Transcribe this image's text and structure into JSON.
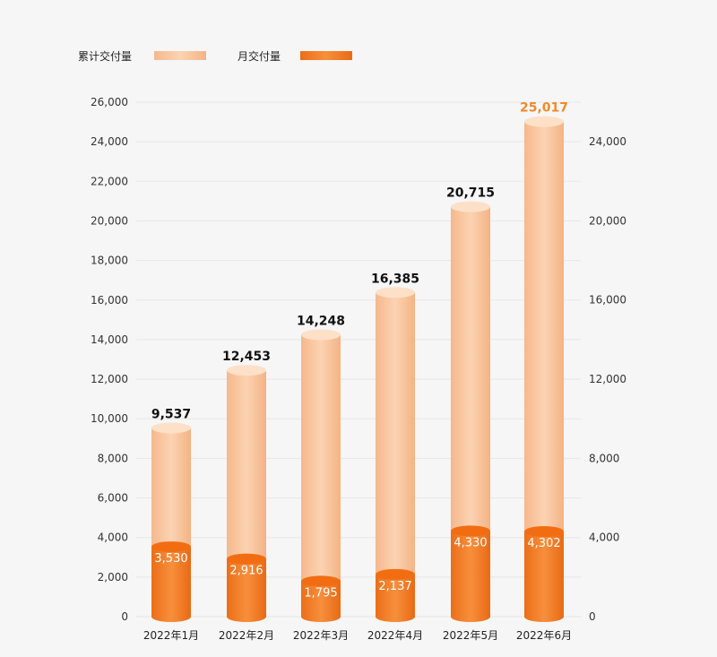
{
  "chart_data": {
    "type": "bar",
    "categories": [
      "2022年1月",
      "2022年2月",
      "2022年3月",
      "2022年4月",
      "2022年5月",
      "2022年6月"
    ],
    "series": [
      {
        "name": "累计交付量",
        "values": [
          9537,
          12453,
          14248,
          16385,
          20715,
          25017
        ],
        "labels": [
          "9,537",
          "12,453",
          "14,248",
          "16,385",
          "20,715",
          "25,017"
        ],
        "color": "#f8c7a0"
      },
      {
        "name": "月交付量",
        "values": [
          3530,
          2916,
          1795,
          2137,
          4330,
          4302
        ],
        "labels": [
          "3,530",
          "2,916",
          "1,795",
          "2,137",
          "4,330",
          "4,302"
        ],
        "color": "#f07f2a"
      }
    ],
    "y_left": {
      "ticks": [
        "0",
        "2,000",
        "4,000",
        "6,000",
        "8,000",
        "10,000",
        "12,000",
        "14,000",
        "16,000",
        "18,000",
        "20,000",
        "22,000",
        "24,000",
        "26,000"
      ],
      "values": [
        0,
        2000,
        4000,
        6000,
        8000,
        10000,
        12000,
        14000,
        16000,
        18000,
        20000,
        22000,
        24000,
        26000
      ],
      "range": [
        0,
        26000
      ]
    },
    "y_right": {
      "ticks": [
        "0",
        "4,000",
        "8,000",
        "12,000",
        "16,000",
        "20,000",
        "24,000"
      ],
      "values": [
        0,
        4000,
        8000,
        12000,
        16000,
        20000,
        24000
      ],
      "range": [
        0,
        24000
      ]
    },
    "legend_position": "top-left",
    "highlight_color": "#f08a2a",
    "label_color": "#111111"
  }
}
